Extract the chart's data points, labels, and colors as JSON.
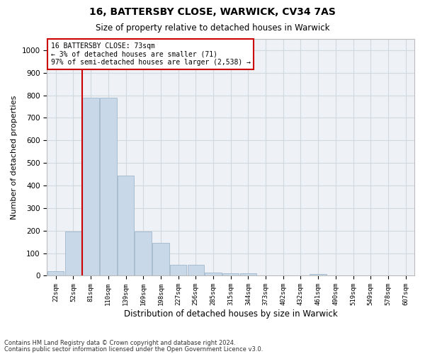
{
  "title1": "16, BATTERSBY CLOSE, WARWICK, CV34 7AS",
  "title2": "Size of property relative to detached houses in Warwick",
  "xlabel": "Distribution of detached houses by size in Warwick",
  "ylabel": "Number of detached properties",
  "categories": [
    "22sqm",
    "52sqm",
    "81sqm",
    "110sqm",
    "139sqm",
    "169sqm",
    "198sqm",
    "227sqm",
    "256sqm",
    "285sqm",
    "315sqm",
    "344sqm",
    "373sqm",
    "402sqm",
    "432sqm",
    "461sqm",
    "490sqm",
    "519sqm",
    "549sqm",
    "578sqm",
    "607sqm"
  ],
  "values": [
    20,
    195,
    790,
    790,
    445,
    195,
    145,
    50,
    50,
    15,
    12,
    10,
    0,
    0,
    0,
    8,
    0,
    0,
    0,
    0,
    0
  ],
  "bar_color": "#c8d8e8",
  "bar_edge_color": "#a0b8cc",
  "vline_x": 1.5,
  "vline_color": "#cc0000",
  "annotation_line1": "16 BATTERSBY CLOSE: 73sqm",
  "annotation_line2": "← 3% of detached houses are smaller (71)",
  "annotation_line3": "97% of semi-detached houses are larger (2,538) →",
  "annotation_box_color": "#cc0000",
  "ylim": [
    0,
    1050
  ],
  "yticks": [
    0,
    100,
    200,
    300,
    400,
    500,
    600,
    700,
    800,
    900,
    1000
  ],
  "grid_color": "#d0d8e0",
  "background_color": "#eef2f7",
  "footer1": "Contains HM Land Registry data © Crown copyright and database right 2024.",
  "footer2": "Contains public sector information licensed under the Open Government Licence v3.0."
}
